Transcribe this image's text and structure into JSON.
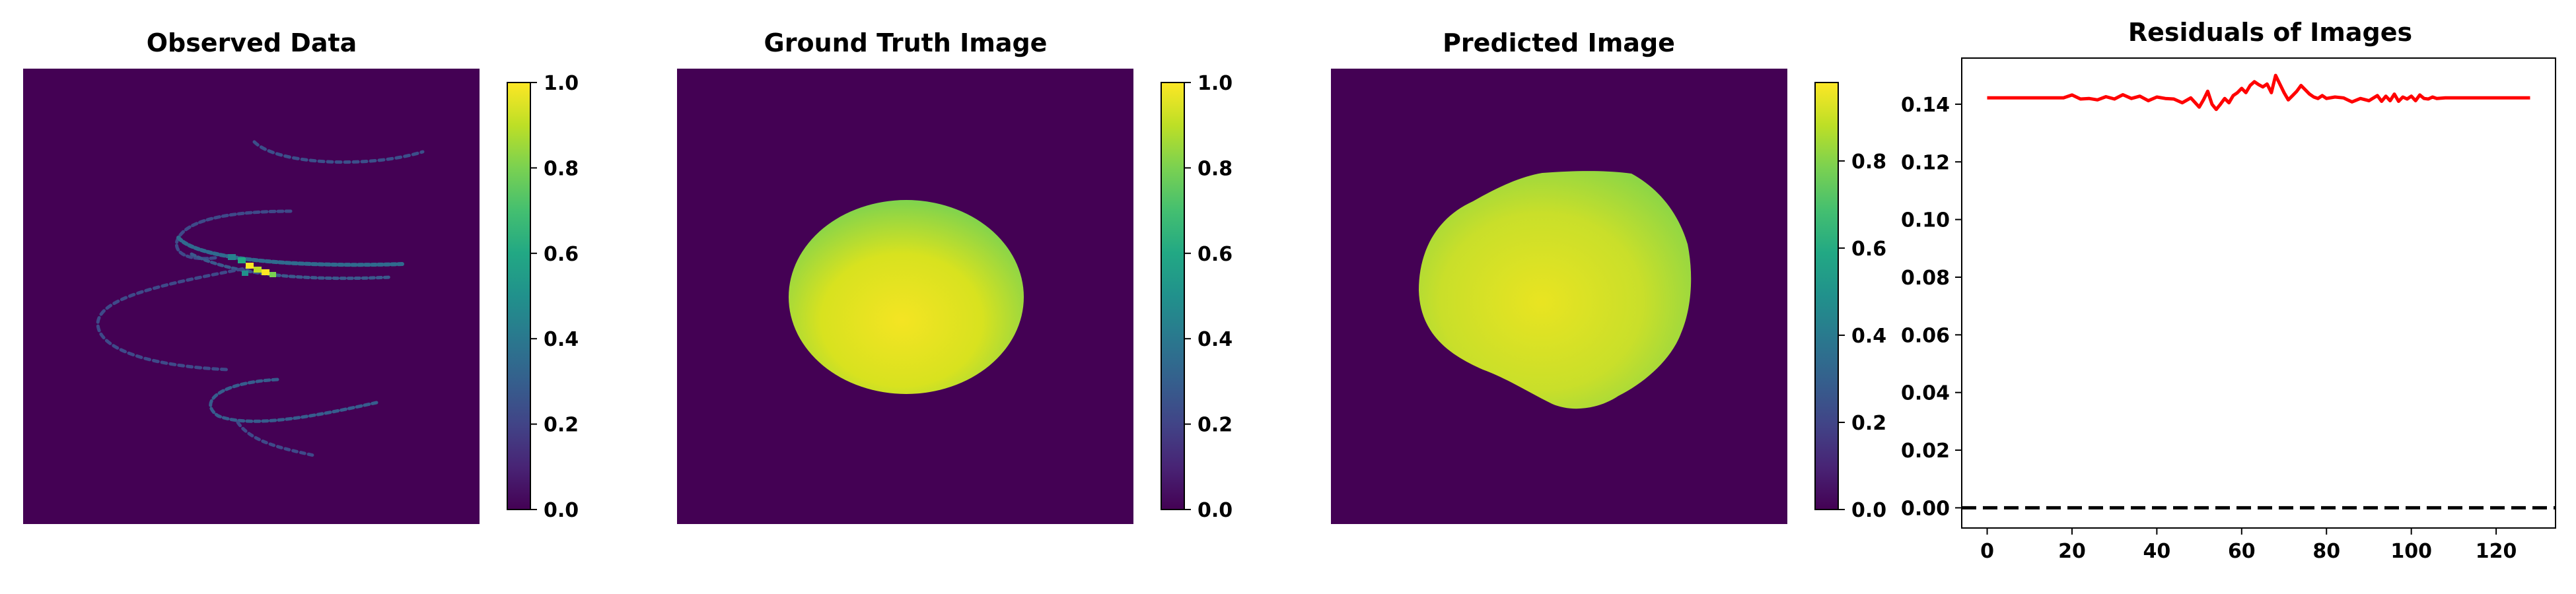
{
  "chart_data": [
    {
      "type": "heatmap",
      "title": "Observed Data",
      "colormap": "viridis",
      "colorbar": {
        "range": [
          0.0,
          1.0
        ],
        "ticks": [
          "0.0",
          "0.2",
          "0.4",
          "0.6",
          "0.8",
          "1.0"
        ]
      },
      "content": "sparse spiral-shaped streaks, background 0.0, peak values near 1.0 at the center crossing"
    },
    {
      "type": "heatmap",
      "title": "Ground Truth Image",
      "colormap": "viridis",
      "colorbar": {
        "range": [
          0.0,
          1.0
        ],
        "ticks": [
          "0.0",
          "0.2",
          "0.4",
          "0.6",
          "0.8",
          "1.0"
        ]
      },
      "content": "uniform filled ellipse with values about 0.8–1.0 on a 0.0 background"
    },
    {
      "type": "heatmap",
      "title": "Predicted Image",
      "colormap": "viridis",
      "colorbar": {
        "range": [
          0.0,
          0.98
        ],
        "ticks": [
          "0.0",
          "0.2",
          "0.4",
          "0.6",
          "0.8"
        ]
      },
      "content": "irregular rounded blob with values about 0.8–0.98 on a 0.0 background"
    },
    {
      "type": "line",
      "title": "Residuals of Images",
      "xlabel": "",
      "ylabel": "",
      "xlim": [
        -6,
        134
      ],
      "ylim": [
        -0.007,
        0.156
      ],
      "xticks": [
        "0",
        "20",
        "40",
        "60",
        "80",
        "100",
        "120"
      ],
      "yticks": [
        "0.00",
        "0.02",
        "0.04",
        "0.06",
        "0.08",
        "0.10",
        "0.12",
        "0.14"
      ],
      "series": [
        {
          "color": "#ff0000",
          "style": "solid",
          "x": [
            0,
            5,
            10,
            15,
            18,
            20,
            22,
            24,
            26,
            28,
            30,
            32,
            34,
            36,
            38,
            40,
            42,
            44,
            46,
            48,
            50,
            51,
            52,
            53,
            54,
            55,
            56,
            57,
            58,
            59,
            60,
            61,
            62,
            63,
            64,
            65,
            66,
            67,
            68,
            69,
            70,
            71,
            72,
            73,
            74,
            75,
            76,
            77,
            78,
            79,
            80,
            82,
            84,
            86,
            88,
            90,
            92,
            93,
            94,
            95,
            96,
            97,
            98,
            99,
            100,
            101,
            102,
            103,
            104,
            105,
            106,
            108,
            110,
            115,
            120,
            124,
            128
          ],
          "y": [
            0.1422,
            0.1422,
            0.1422,
            0.1422,
            0.1422,
            0.1432,
            0.1418,
            0.142,
            0.1415,
            0.1426,
            0.1418,
            0.1433,
            0.142,
            0.1428,
            0.1412,
            0.1425,
            0.142,
            0.1418,
            0.1405,
            0.1422,
            0.139,
            0.1415,
            0.1445,
            0.14,
            0.1382,
            0.14,
            0.142,
            0.1405,
            0.143,
            0.144,
            0.1455,
            0.144,
            0.1465,
            0.1478,
            0.1468,
            0.146,
            0.147,
            0.144,
            0.15,
            0.147,
            0.144,
            0.1415,
            0.143,
            0.1445,
            0.1465,
            0.145,
            0.1435,
            0.1425,
            0.142,
            0.143,
            0.142,
            0.1425,
            0.1422,
            0.1408,
            0.142,
            0.1412,
            0.143,
            0.141,
            0.1428,
            0.1412,
            0.1435,
            0.141,
            0.1425,
            0.1418,
            0.1428,
            0.1412,
            0.1432,
            0.142,
            0.1418,
            0.1425,
            0.142,
            0.1422,
            0.1422,
            0.1422,
            0.1422,
            0.1422,
            0.1422
          ]
        },
        {
          "color": "#000000",
          "style": "dashed",
          "x": [
            -6,
            134
          ],
          "y": [
            0,
            0
          ]
        }
      ]
    }
  ]
}
